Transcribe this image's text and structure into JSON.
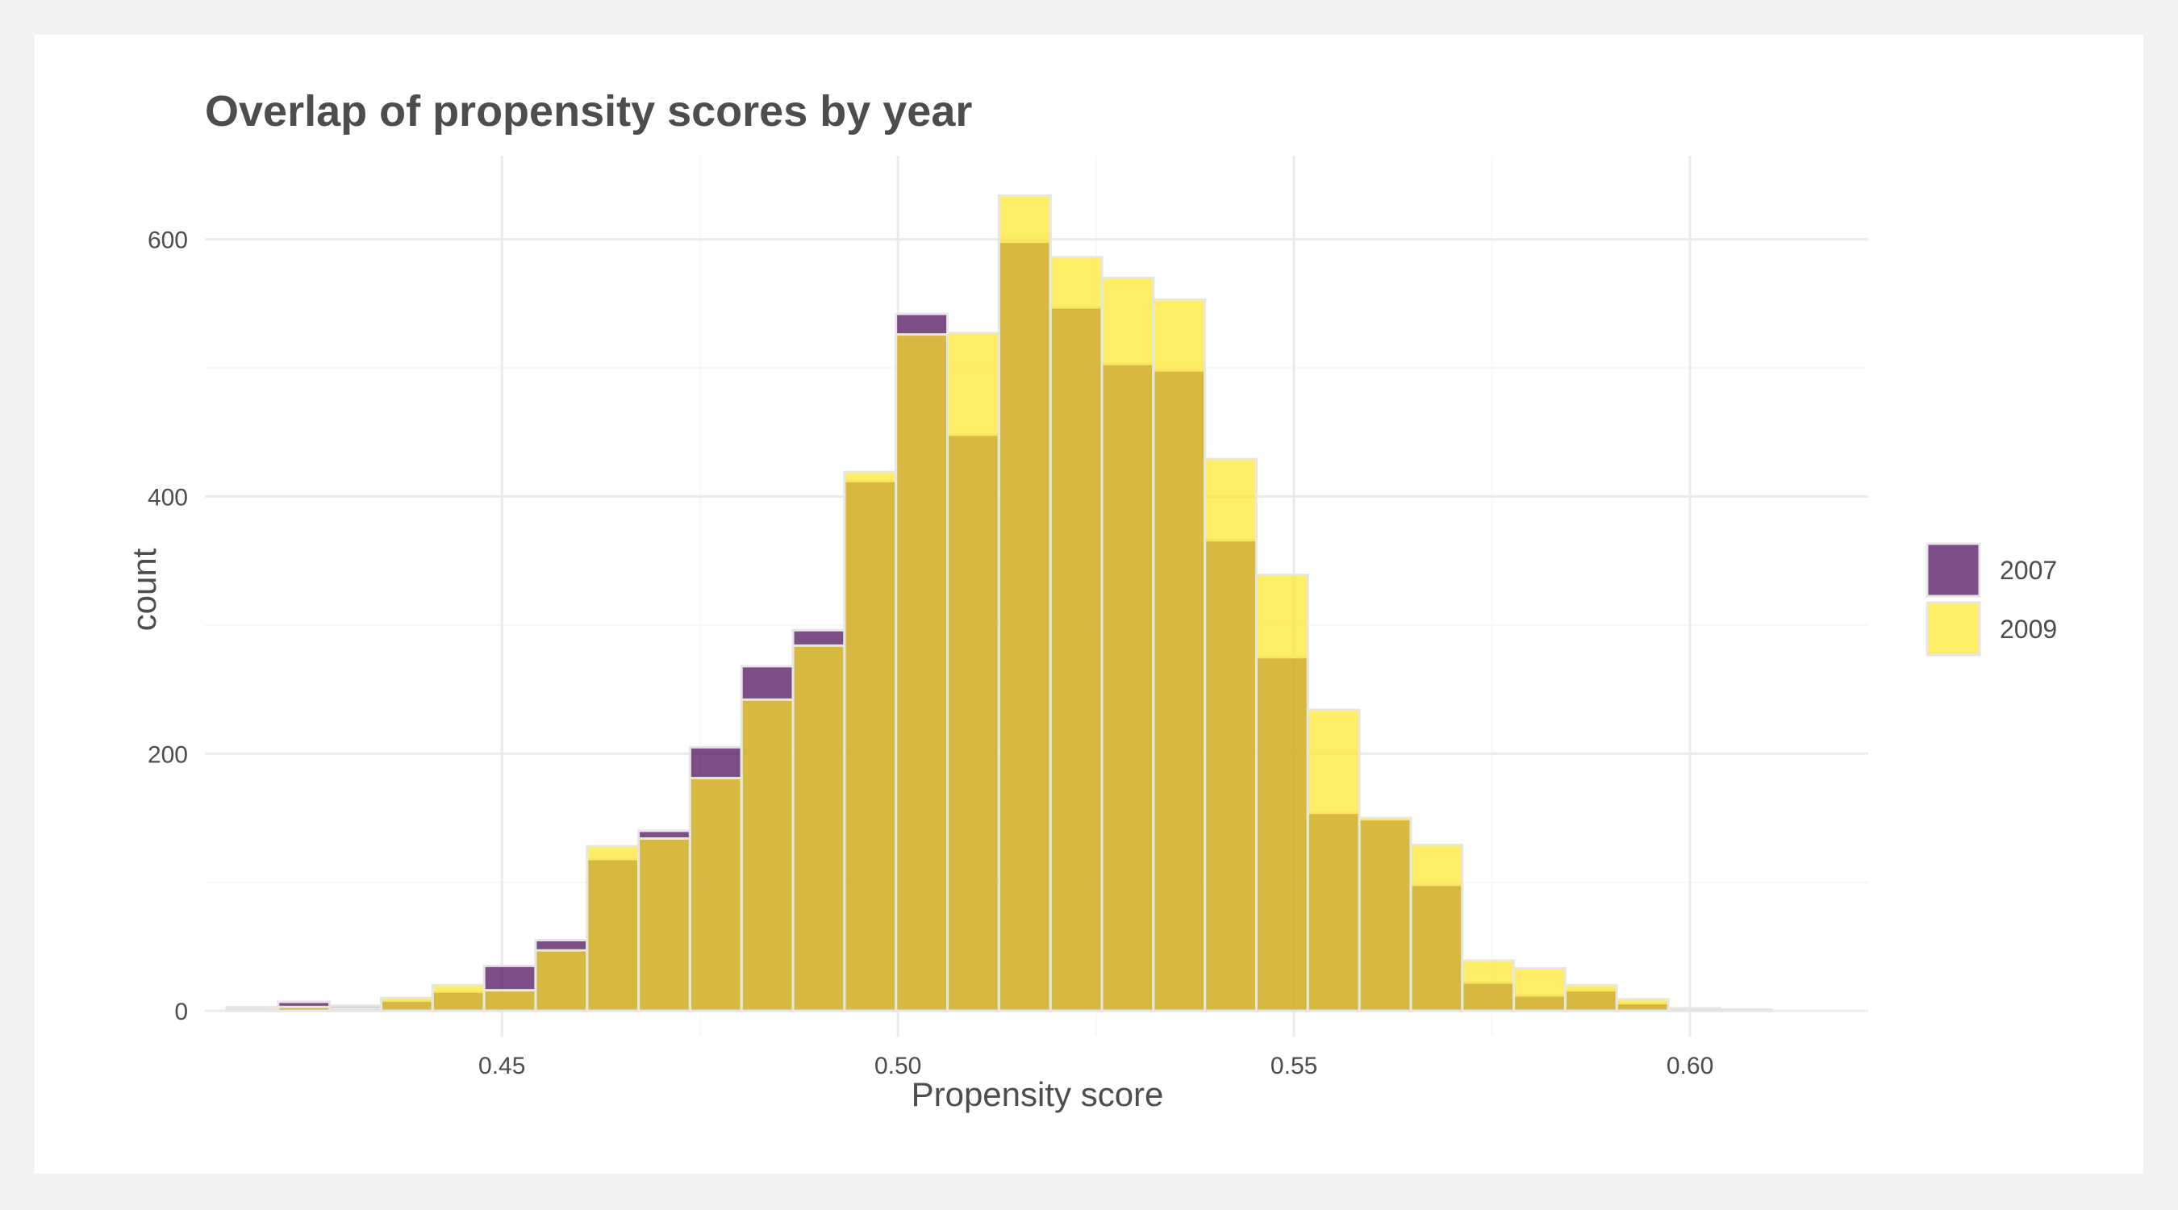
{
  "chart_data": {
    "type": "bar",
    "title": "Overlap of propensity scores by year",
    "xlabel": "Propensity score",
    "ylabel": "count",
    "xlim": [
      0.4125,
      0.6225
    ],
    "ylim": [
      -20,
      665
    ],
    "x_ticks": [
      0.45,
      0.5,
      0.55,
      0.6
    ],
    "x_tick_labels": [
      "0.45",
      "0.50",
      "0.55",
      "0.60"
    ],
    "y_ticks": [
      0,
      200,
      400,
      600
    ],
    "y_tick_labels": [
      "0",
      "200",
      "400",
      "600"
    ],
    "grid": true,
    "legend_position": "right",
    "bin_width": 0.0065,
    "bin_centers": [
      0.4185,
      0.425,
      0.4315,
      0.438,
      0.4445,
      0.451,
      0.4575,
      0.464,
      0.4705,
      0.477,
      0.4835,
      0.49,
      0.4965,
      0.503,
      0.5095,
      0.516,
      0.5225,
      0.529,
      0.5355,
      0.542,
      0.5485,
      0.555,
      0.5615,
      0.568,
      0.5745,
      0.581,
      0.5875,
      0.594,
      0.6005,
      0.607
    ],
    "series": [
      {
        "name": "2007",
        "color": "#440154",
        "values": [
          3,
          7,
          4,
          8,
          15,
          35,
          55,
          118,
          140,
          205,
          268,
          296,
          412,
          542,
          448,
          598,
          547,
          503,
          498,
          366,
          275,
          154,
          149,
          98,
          22,
          12,
          16,
          6,
          2,
          1
        ]
      },
      {
        "name": "2009",
        "color": "#fde725",
        "values": [
          2,
          3,
          2,
          10,
          20,
          16,
          47,
          128,
          134,
          181,
          242,
          284,
          419,
          526,
          527,
          634,
          586,
          570,
          553,
          429,
          339,
          234,
          150,
          129,
          39,
          33,
          20,
          9,
          2,
          1
        ]
      }
    ]
  }
}
